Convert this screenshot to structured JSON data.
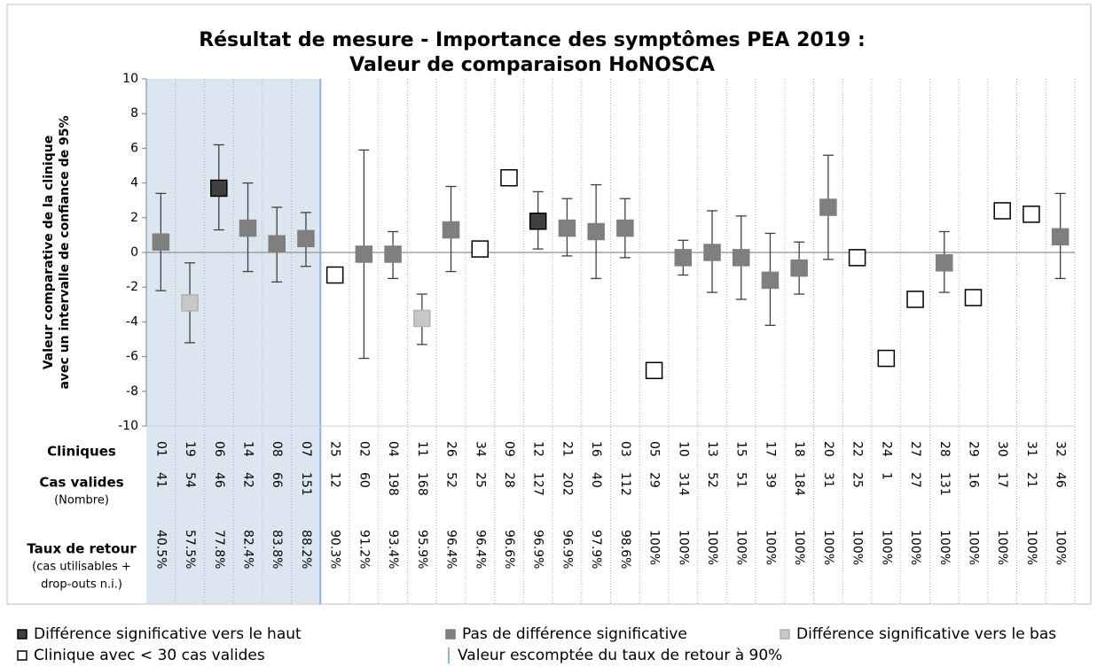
{
  "chart_data": {
    "type": "errorbar",
    "title": [
      "Résultat de mesure - Importance des symptômes PEA 2019 :",
      "Valeur de comparaison HoNOSCA"
    ],
    "y_label": [
      "Valeur comparative de la clinique",
      "avec un intervalle de confiance de 95%"
    ],
    "ylim": [
      -10,
      10
    ],
    "yticks": [
      -10,
      -8,
      -6,
      -4,
      -2,
      0,
      2,
      4,
      6,
      8,
      10
    ],
    "table_headers": [
      [
        "Cliniques"
      ],
      [
        "Cas valides",
        "(Nombre)"
      ],
      [
        "Taux de retour",
        "(cas utilisables +",
        "drop-outs n.i.)"
      ]
    ],
    "categories": [
      "01",
      "19",
      "06",
      "14",
      "08",
      "07",
      "25",
      "02",
      "04",
      "11",
      "26",
      "34",
      "09",
      "12",
      "21",
      "16",
      "03",
      "05",
      "10",
      "13",
      "15",
      "17",
      "18",
      "20",
      "22",
      "24",
      "27",
      "28",
      "29",
      "30",
      "31",
      "32"
    ],
    "valid_cases": [
      41,
      54,
      46,
      42,
      66,
      151,
      12,
      60,
      198,
      168,
      52,
      25,
      28,
      127,
      202,
      40,
      112,
      29,
      314,
      52,
      51,
      39,
      184,
      31,
      25,
      1,
      27,
      131,
      16,
      17,
      21,
      46
    ],
    "return_rates": [
      40.5,
      57.5,
      77.8,
      82.4,
      83.8,
      88.2,
      90.3,
      91.2,
      93.4,
      95.9,
      96.4,
      96.4,
      96.6,
      96.9,
      96.9,
      97.9,
      98.6,
      100,
      100,
      100,
      100,
      100,
      100,
      100,
      100,
      100,
      100,
      100,
      100,
      100,
      100,
      100
    ],
    "return_rate_labels": [
      "40.5%",
      "57.5%",
      "77.8%",
      "82.4%",
      "83.8%",
      "88.2%",
      "90.3%",
      "91.2%",
      "93.4%",
      "95.9%",
      "96.4%",
      "96.4%",
      "96.6%",
      "96.9%",
      "96.9%",
      "97.9%",
      "98.6%",
      "100%",
      "100%",
      "100%",
      "100%",
      "100%",
      "100%",
      "100%",
      "100%",
      "100%",
      "100%",
      "100%",
      "100%",
      "100%",
      "100%",
      "100%"
    ],
    "reference_line": {
      "label": "Valeur escomptée du taux de retour à 90%",
      "value": 90,
      "color": "#8db3e2"
    },
    "series": [
      {
        "name": "Différence significative vers le haut",
        "color": "#404040",
        "edgecolor": "#000000",
        "values": [
          null,
          null,
          3.7,
          null,
          null,
          null,
          null,
          null,
          null,
          null,
          null,
          null,
          null,
          1.8,
          null,
          null,
          null,
          null,
          null,
          null,
          null,
          null,
          null,
          null,
          null,
          null,
          null,
          null,
          null,
          null,
          null,
          null
        ],
        "ci_low": [
          null,
          null,
          1.3,
          null,
          null,
          null,
          null,
          null,
          null,
          null,
          null,
          null,
          null,
          0.2,
          null,
          null,
          null,
          null,
          null,
          null,
          null,
          null,
          null,
          null,
          null,
          null,
          null,
          null,
          null,
          null,
          null,
          null
        ],
        "ci_high": [
          null,
          null,
          6.2,
          null,
          null,
          null,
          null,
          null,
          null,
          null,
          null,
          null,
          null,
          3.5,
          null,
          null,
          null,
          null,
          null,
          null,
          null,
          null,
          null,
          null,
          null,
          null,
          null,
          null,
          null,
          null,
          null,
          null
        ]
      },
      {
        "name": "Pas de différence significative",
        "color": "#7f7f7f",
        "edgecolor": "#7f7f7f",
        "values": [
          0.6,
          null,
          null,
          1.4,
          0.5,
          0.8,
          null,
          -0.1,
          -0.1,
          null,
          1.3,
          null,
          null,
          null,
          1.4,
          1.2,
          1.4,
          null,
          -0.3,
          0.0,
          -0.3,
          -1.6,
          -0.9,
          2.6,
          null,
          null,
          null,
          -0.6,
          null,
          null,
          null,
          0.9
        ],
        "ci_low": [
          -2.2,
          null,
          null,
          -1.1,
          -1.7,
          -0.8,
          null,
          -6.1,
          -1.5,
          null,
          -1.1,
          null,
          null,
          null,
          -0.2,
          -1.5,
          -0.3,
          null,
          -1.3,
          -2.3,
          -2.7,
          -4.2,
          -2.4,
          -0.4,
          null,
          null,
          null,
          -2.3,
          null,
          null,
          null,
          -1.5
        ],
        "ci_high": [
          3.4,
          null,
          null,
          4.0,
          2.6,
          2.3,
          null,
          5.9,
          1.2,
          null,
          3.8,
          null,
          null,
          null,
          3.1,
          3.9,
          3.1,
          null,
          0.7,
          2.4,
          2.1,
          1.1,
          0.6,
          5.6,
          null,
          null,
          null,
          1.2,
          null,
          null,
          null,
          3.4
        ]
      },
      {
        "name": "Différence significative vers le bas",
        "color": "#c8c8c8",
        "edgecolor": "#b0b0b0",
        "values": [
          null,
          -2.9,
          null,
          null,
          null,
          null,
          null,
          null,
          null,
          -3.8,
          null,
          null,
          null,
          null,
          null,
          null,
          null,
          null,
          null,
          null,
          null,
          null,
          null,
          null,
          null,
          null,
          null,
          null,
          null,
          null,
          null,
          null
        ],
        "ci_low": [
          null,
          -5.2,
          null,
          null,
          null,
          null,
          null,
          null,
          null,
          -5.3,
          null,
          null,
          null,
          null,
          null,
          null,
          null,
          null,
          null,
          null,
          null,
          null,
          null,
          null,
          null,
          null,
          null,
          null,
          null,
          null,
          null,
          null
        ],
        "ci_high": [
          null,
          -0.6,
          null,
          null,
          null,
          null,
          null,
          null,
          null,
          -2.4,
          null,
          null,
          null,
          null,
          null,
          null,
          null,
          null,
          null,
          null,
          null,
          null,
          null,
          null,
          null,
          null,
          null,
          null,
          null,
          null,
          null,
          null
        ]
      },
      {
        "name": "Clinique avec < 30 cas valides",
        "color": "#ffffff",
        "edgecolor": "#000000",
        "values": [
          null,
          null,
          null,
          null,
          null,
          null,
          -1.3,
          null,
          null,
          null,
          null,
          0.2,
          4.3,
          null,
          null,
          null,
          null,
          -6.8,
          null,
          null,
          null,
          null,
          null,
          null,
          -0.3,
          -6.1,
          -2.7,
          null,
          -2.6,
          2.4,
          2.2,
          null
        ]
      }
    ]
  }
}
